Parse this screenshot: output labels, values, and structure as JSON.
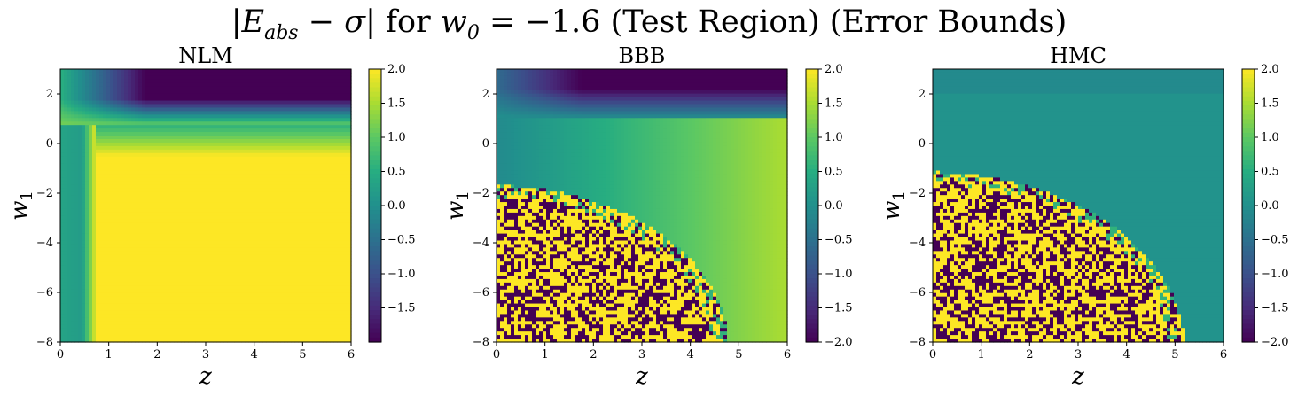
{
  "figure": {
    "title_parts": {
      "lhs_E": "E",
      "lhs_sub": "abs",
      "lhs_sigma": "σ",
      "for_word": " for ",
      "w_symbol": "w",
      "w_sub": "0",
      "w_value": " = −1.6 ",
      "suffix": "(Test Region) (Error Bounds)"
    }
  },
  "colors": {
    "viridis_low": "#440154",
    "viridis_mid": "#21918c",
    "viridis_high": "#fde725"
  },
  "chart_data": [
    {
      "type": "heatmap",
      "title": "NLM",
      "xlabel": "z",
      "ylabel": "w1",
      "xlim": [
        0,
        6
      ],
      "ylim": [
        -8,
        3
      ],
      "xticks": [
        "0",
        "1",
        "2",
        "3",
        "4",
        "5",
        "6"
      ],
      "yticks": [
        "2",
        "0",
        "−2",
        "−4",
        "−6",
        "−8"
      ],
      "colormap": "viridis",
      "clim": [
        -2.0,
        2.0
      ],
      "colorbar_ticks": [
        "2.0",
        "1.5",
        "1.0",
        "0.5",
        "0.0",
        "−0.5",
        "−1.0",
        "−1.5"
      ],
      "description": "Upper-right (w1 > 1) strongly negative; left strip near z < 0.5 around 0; bulk of region saturated at +2"
    },
    {
      "type": "heatmap",
      "title": "BBB",
      "xlabel": "z",
      "ylabel": "w1",
      "xlim": [
        0,
        6
      ],
      "ylim": [
        -8,
        3
      ],
      "xticks": [
        "0",
        "1",
        "2",
        "3",
        "4",
        "5",
        "6"
      ],
      "yticks": [
        "2",
        "0",
        "−2",
        "−4",
        "−6",
        "−8"
      ],
      "colormap": "viridis",
      "clim": [
        -2.0,
        2.0
      ],
      "colorbar_ticks": [
        "2.0",
        "1.5",
        "1.0",
        "0.5",
        "0.0",
        "−0.5",
        "−1.0",
        "−1.5",
        "−2.0"
      ],
      "description": "Top-right negative; smooth region near 0 toward left; noisy ±2 region in lower-right quarter-circle"
    },
    {
      "type": "heatmap",
      "title": "HMC",
      "xlabel": "z",
      "ylabel": "w1",
      "xlim": [
        0,
        6
      ],
      "ylim": [
        -8,
        3
      ],
      "xticks": [
        "0",
        "1",
        "2",
        "3",
        "4",
        "5",
        "6"
      ],
      "yticks": [
        "2",
        "0",
        "−2",
        "−4",
        "−6",
        "−8"
      ],
      "colormap": "viridis",
      "clim": [
        -2.0,
        2.0
      ],
      "colorbar_ticks": [
        "2.0",
        "1.5",
        "1.0",
        "0.5",
        "0.0",
        "−0.5",
        "−1.0",
        "−1.5",
        "−2.0"
      ],
      "description": "Mostly near 0; noisy ±2 region in lower-right quarter-circle"
    }
  ]
}
